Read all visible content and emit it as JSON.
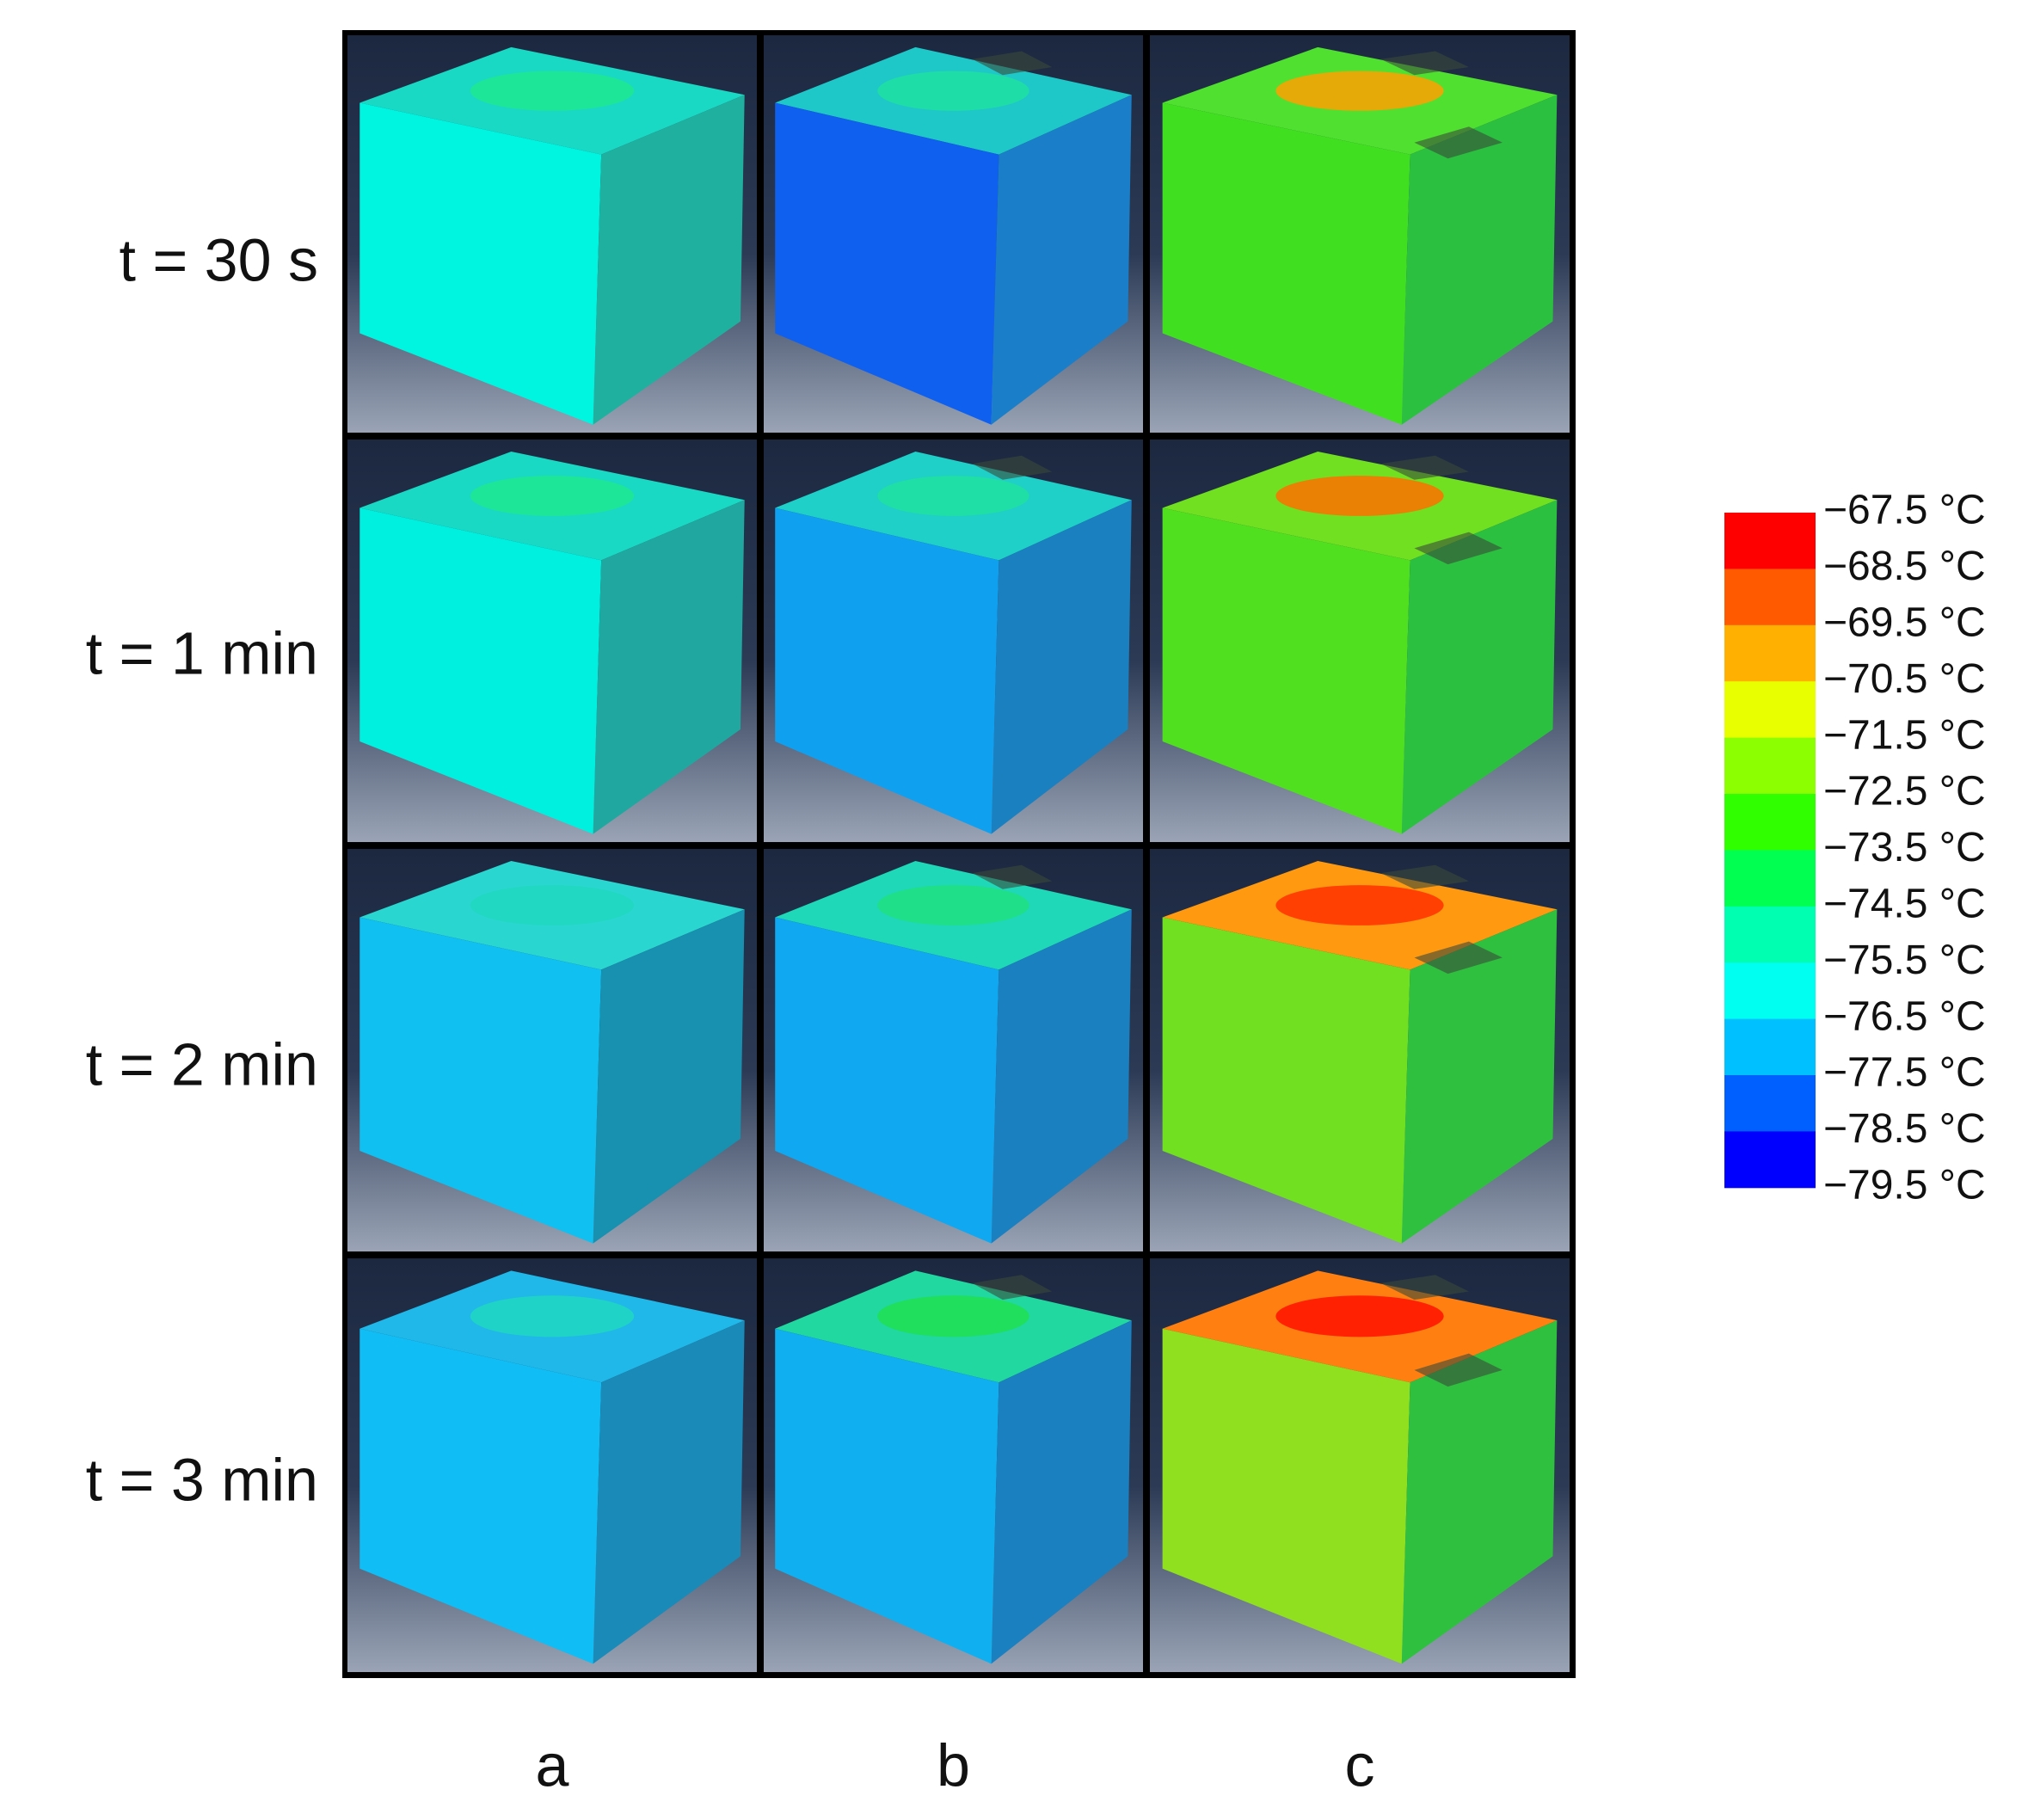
{
  "row_labels": [
    "t = 30 s",
    "t = 1 min",
    "t = 2 min",
    "t = 3 min"
  ],
  "column_labels": [
    "a",
    "b",
    "c"
  ],
  "legend": {
    "entries": [
      {
        "label": "−67.5 °C",
        "color": "#ff0000"
      },
      {
        "label": "−68.5 °C",
        "color": "#ff5a00"
      },
      {
        "label": "−69.5 °C",
        "color": "#ffb000"
      },
      {
        "label": "−70.5 °C",
        "color": "#e8ff00"
      },
      {
        "label": "−71.5 °C",
        "color": "#8cff00"
      },
      {
        "label": "−72.5 °C",
        "color": "#30ff00"
      },
      {
        "label": "−73.5 °C",
        "color": "#00ff50"
      },
      {
        "label": "−74.5 °C",
        "color": "#00ffb0"
      },
      {
        "label": "−75.5 °C",
        "color": "#00fff0"
      },
      {
        "label": "−76.5 °C",
        "color": "#00c0ff"
      },
      {
        "label": "−77.5 °C",
        "color": "#0060ff"
      },
      {
        "label": "−78.5 °C",
        "color": "#0000ff"
      },
      {
        "label": "−79.5 °C"
      }
    ]
  }
}
